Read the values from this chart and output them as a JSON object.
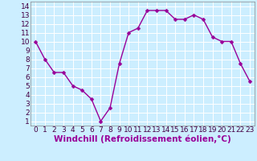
{
  "x": [
    0,
    1,
    2,
    3,
    4,
    5,
    6,
    7,
    8,
    9,
    10,
    11,
    12,
    13,
    14,
    15,
    16,
    17,
    18,
    19,
    20,
    21,
    22,
    23
  ],
  "y": [
    10,
    8,
    6.5,
    6.5,
    5,
    4.5,
    3.5,
    1,
    2.5,
    7.5,
    11,
    11.5,
    13.5,
    13.5,
    13.5,
    12.5,
    12.5,
    13,
    12.5,
    10.5,
    10,
    10,
    7.5,
    5.5
  ],
  "line_color": "#990099",
  "marker_color": "#990099",
  "bg_color": "#cceeff",
  "grid_color": "#ffffff",
  "xlabel": "Windchill (Refroidissement éolien,°C)",
  "xlim": [
    -0.5,
    23.5
  ],
  "ylim": [
    0.5,
    14.5
  ],
  "yticks": [
    1,
    2,
    3,
    4,
    5,
    6,
    7,
    8,
    9,
    10,
    11,
    12,
    13,
    14
  ],
  "xticks": [
    0,
    1,
    2,
    3,
    4,
    5,
    6,
    7,
    8,
    9,
    10,
    11,
    12,
    13,
    14,
    15,
    16,
    17,
    18,
    19,
    20,
    21,
    22,
    23
  ],
  "tick_fontsize": 6.5,
  "xlabel_fontsize": 7.5,
  "line_width": 1.0,
  "marker_size": 2.5
}
